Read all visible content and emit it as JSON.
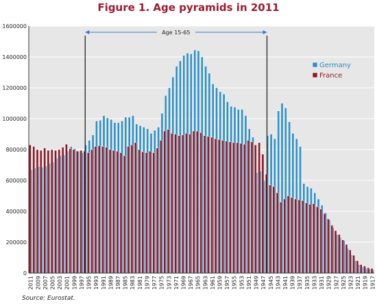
{
  "title": "Figure 1. Age pyramids in 2011",
  "source": "Source: Eurostat.",
  "colors": {
    "germany": "#2d8fc4",
    "france": "#8b1a26",
    "title": "#9b1b30",
    "plot_bg": "#e7e7e7"
  },
  "chart_data": {
    "type": "bar",
    "ylim": [
      0,
      1600000
    ],
    "yticks": [
      0,
      200000,
      400000,
      600000,
      800000,
      1000000,
      1200000,
      1400000,
      1600000
    ],
    "x": [
      2011,
      2010,
      2009,
      2008,
      2007,
      2006,
      2005,
      2004,
      2003,
      2002,
      2001,
      2000,
      1999,
      1998,
      1997,
      1996,
      1995,
      1994,
      1993,
      1992,
      1991,
      1990,
      1989,
      1988,
      1987,
      1986,
      1985,
      1984,
      1983,
      1982,
      1981,
      1980,
      1979,
      1978,
      1977,
      1976,
      1975,
      1974,
      1973,
      1972,
      1971,
      1970,
      1969,
      1968,
      1967,
      1966,
      1965,
      1964,
      1963,
      1962,
      1961,
      1960,
      1959,
      1958,
      1957,
      1956,
      1955,
      1954,
      1953,
      1952,
      1951,
      1950,
      1949,
      1948,
      1947,
      1946,
      1945,
      1944,
      1943,
      1942,
      1941,
      1940,
      1939,
      1938,
      1937,
      1936,
      1935,
      1934,
      1933,
      1932,
      1931,
      1930,
      1929,
      1928,
      1927,
      1926,
      1925,
      1924,
      1923,
      1922,
      1921,
      1920,
      1919,
      1918,
      1917
    ],
    "xtick_labels": [
      "2011",
      "2009",
      "2007",
      "2005",
      "2003",
      "2001",
      "1999",
      "1997",
      "1995",
      "1993",
      "1991",
      "1989",
      "1987",
      "1985",
      "1983",
      "1981",
      "1979",
      "1977",
      "1975",
      "1973",
      "1971",
      "1969",
      "1967",
      "1965",
      "1963",
      "1961",
      "1959",
      "1957",
      "1955",
      "1953",
      "1951",
      "1949",
      "1947",
      "1945",
      "1943",
      "1941",
      "1939",
      "1937",
      "1935",
      "1933",
      "1931",
      "1929",
      "1927",
      "1925",
      "1923",
      "1921",
      "1919",
      "1917"
    ],
    "series": [
      {
        "name": "Germany",
        "values": [
          670000,
          680000,
          690000,
          685000,
          695000,
          710000,
          720000,
          745000,
          760000,
          765000,
          790000,
          820000,
          805000,
          790000,
          780000,
          830000,
          860000,
          895000,
          985000,
          990000,
          1020000,
          1005000,
          995000,
          975000,
          975000,
          985000,
          1010000,
          1010000,
          1020000,
          965000,
          955000,
          945000,
          935000,
          905000,
          925000,
          945000,
          1035000,
          1150000,
          1200000,
          1270000,
          1340000,
          1375000,
          1410000,
          1425000,
          1420000,
          1445000,
          1440000,
          1400000,
          1340000,
          1295000,
          1225000,
          1200000,
          1175000,
          1160000,
          1110000,
          1080000,
          1075000,
          1060000,
          1060000,
          1020000,
          935000,
          880000,
          650000,
          660000,
          600000,
          890000,
          900000,
          870000,
          1050000,
          1100000,
          1070000,
          980000,
          905000,
          870000,
          820000,
          580000,
          560000,
          550000,
          520000,
          480000,
          440000,
          390000,
          345000,
          295000,
          250000,
          230000,
          210000,
          160000,
          120000,
          80000,
          55000,
          40000,
          30000,
          25000,
          20000
        ]
      },
      {
        "name": "France",
        "values": [
          830000,
          820000,
          800000,
          795000,
          810000,
          795000,
          800000,
          795000,
          800000,
          815000,
          835000,
          805000,
          800000,
          790000,
          795000,
          790000,
          780000,
          800000,
          820000,
          825000,
          820000,
          815000,
          800000,
          795000,
          790000,
          780000,
          760000,
          820000,
          830000,
          845000,
          800000,
          785000,
          780000,
          790000,
          780000,
          810000,
          860000,
          920000,
          930000,
          905000,
          900000,
          890000,
          895000,
          905000,
          900000,
          920000,
          920000,
          910000,
          890000,
          885000,
          880000,
          870000,
          865000,
          860000,
          855000,
          850000,
          845000,
          845000,
          840000,
          835000,
          860000,
          850000,
          830000,
          845000,
          770000,
          640000,
          570000,
          560000,
          520000,
          460000,
          480000,
          500000,
          490000,
          480000,
          475000,
          470000,
          455000,
          445000,
          450000,
          430000,
          415000,
          385000,
          350000,
          310000,
          275000,
          250000,
          215000,
          185000,
          150000,
          115000,
          80000,
          55000,
          45000,
          35000,
          30000
        ]
      }
    ],
    "legend": [
      "Germany",
      "France"
    ],
    "legend_position": "right",
    "annotation": {
      "label": "Age 15-65",
      "from": 1996,
      "to": 1946
    }
  }
}
